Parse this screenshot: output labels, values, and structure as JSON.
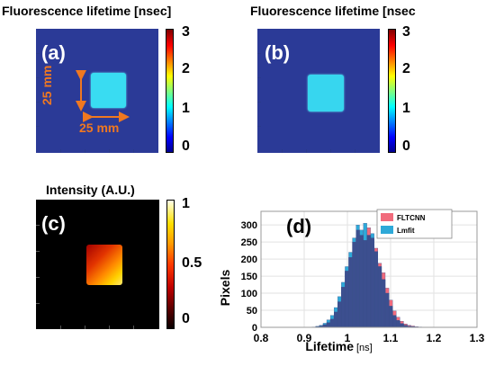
{
  "panels": {
    "a": {
      "label": "(a)",
      "title": "Fluorescence lifetime [nsec]",
      "dim_v": "25 mm",
      "dim_h": "25 mm"
    },
    "b": {
      "label": "(b)",
      "title": "Fluorescence lifetime [nsec"
    },
    "c": {
      "label": "(c)",
      "title": "Intensity (A.U.)"
    },
    "d": {
      "label": "(d)"
    }
  },
  "colorbars": {
    "lifetime": {
      "ticks": [
        "3",
        "2",
        "1",
        "0"
      ],
      "colormap": "jet"
    },
    "intensity": {
      "ticks": [
        "1",
        "0.5",
        "0"
      ],
      "colormap": "hot"
    }
  },
  "colors": {
    "background_blue": "#2b3a97",
    "square_cyan": "#39dcf2",
    "annotation_orange": "#f07820",
    "fltcnn": "#f16b7c",
    "lmfit": "#2ea9d8",
    "overlap": "#3c4f8f"
  },
  "chart_data": {
    "type": "bar",
    "title": "",
    "xlabel": "Lifetime",
    "xlabel_unit": "[ns]",
    "ylabel": "Pixels",
    "xlim": [
      0.8,
      1.3
    ],
    "ylim": [
      0,
      340
    ],
    "xticks": [
      "0.8",
      "0.9",
      "1",
      "1.1",
      "1.2",
      "1.3"
    ],
    "yticks": [
      "0",
      "50",
      "100",
      "150",
      "200",
      "250",
      "300"
    ],
    "grid": true,
    "legend": "top-right",
    "bin_width": 0.0085,
    "bin_centers": [
      0.9224,
      0.9309,
      0.9394,
      0.9479,
      0.9564,
      0.9649,
      0.9734,
      0.9819,
      0.9904,
      0.9989,
      1.0074,
      1.0159,
      1.0244,
      1.0329,
      1.0414,
      1.0499,
      1.0584,
      1.0669,
      1.0754,
      1.0839,
      1.0924,
      1.1009,
      1.1094,
      1.1179,
      1.1264,
      1.1349,
      1.1434,
      1.1519,
      1.1604,
      1.1689
    ],
    "series": [
      {
        "name": "FLTCNN",
        "values": [
          1,
          2,
          4,
          8,
          14,
          24,
          45,
          75,
          118,
          165,
          205,
          250,
          285,
          270,
          255,
          292,
          262,
          232,
          188,
          160,
          115,
          80,
          48,
          30,
          18,
          10,
          6,
          4,
          2,
          1
        ]
      },
      {
        "name": "Lmfit",
        "values": [
          1,
          3,
          6,
          12,
          22,
          35,
          58,
          90,
          132,
          178,
          220,
          262,
          300,
          285,
          305,
          270,
          275,
          222,
          178,
          140,
          100,
          62,
          35,
          20,
          11,
          6,
          3,
          2,
          1,
          1
        ]
      }
    ]
  }
}
